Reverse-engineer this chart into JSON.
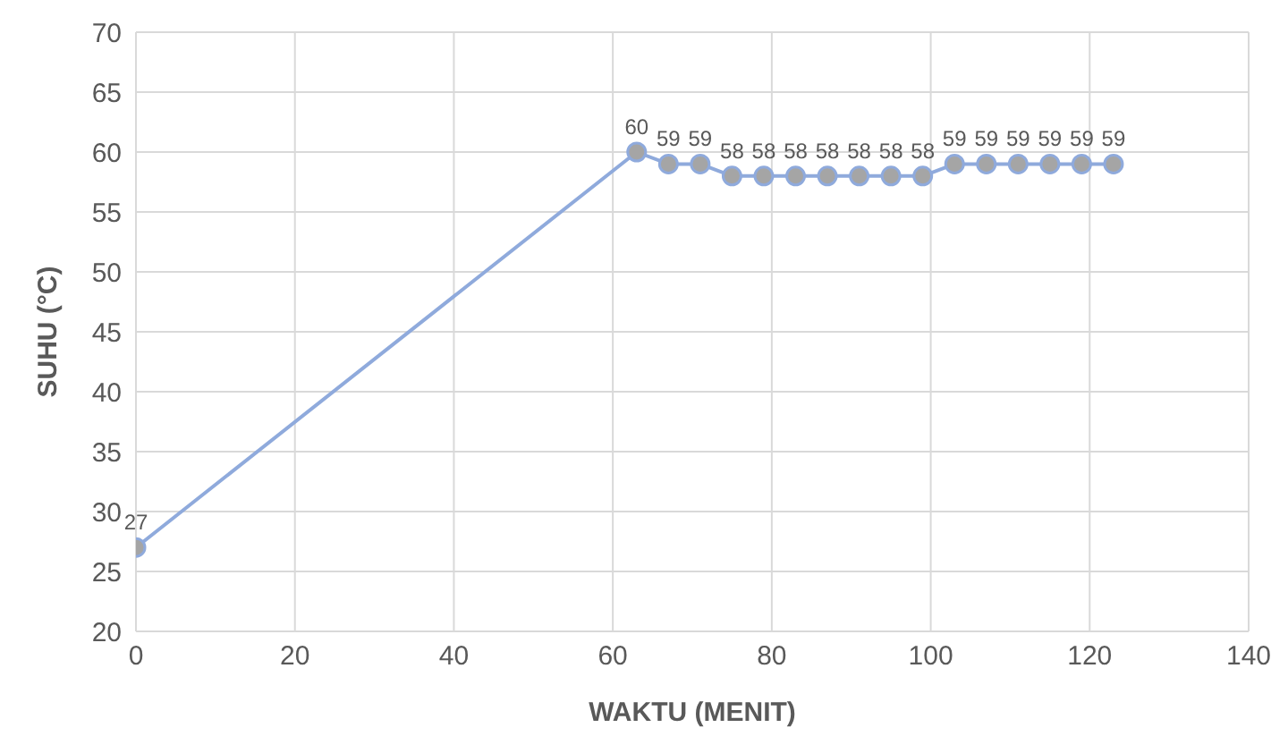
{
  "chart_data": {
    "type": "line",
    "xlabel": "WAKTU (MENIT)",
    "ylabel": "SUHU (°C)",
    "x": [
      0,
      63,
      67,
      71,
      75,
      79,
      83,
      87,
      91,
      95,
      99,
      103,
      107,
      111,
      115,
      119,
      123
    ],
    "series": [
      {
        "color": "#8faadc",
        "values": [
          27,
          60,
          59,
          59,
          58,
          58,
          58,
          58,
          58,
          58,
          58,
          59,
          59,
          59,
          59,
          59,
          59
        ]
      }
    ],
    "xlim": [
      0,
      140
    ],
    "xticks": [
      0,
      20,
      40,
      60,
      80,
      100,
      120,
      140
    ],
    "ylim": [
      20,
      70
    ],
    "yticks": [
      20,
      25,
      30,
      35,
      40,
      45,
      50,
      55,
      60,
      65,
      70
    ],
    "grid": true,
    "marker": "circle",
    "data_labels": true,
    "legend": false
  }
}
